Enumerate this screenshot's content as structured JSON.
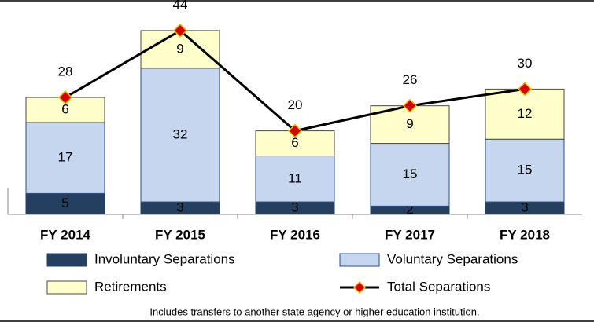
{
  "chart_data": {
    "type": "bar",
    "stacked": true,
    "categories": [
      "FY 2014",
      "FY 2015",
      "FY 2016",
      "FY 2017",
      "FY 2018"
    ],
    "series": [
      {
        "name": "Involuntary Separations",
        "color": "#243f60",
        "values": [
          5,
          3,
          3,
          2,
          3
        ]
      },
      {
        "name": "Voluntary Separations",
        "color": "#c6d6ef",
        "values": [
          17,
          32,
          11,
          15,
          15
        ]
      },
      {
        "name": "Retirements",
        "color": "#ffffcc",
        "values": [
          6,
          9,
          6,
          9,
          12
        ]
      },
      {
        "name": "Total Separations",
        "type": "line",
        "color": "#000000",
        "marker_color": "#d40000",
        "values": [
          28,
          44,
          20,
          26,
          30
        ]
      }
    ],
    "ylim": [
      0,
      50
    ],
    "note": "Includes transfers to another state agency or higher education institution."
  }
}
